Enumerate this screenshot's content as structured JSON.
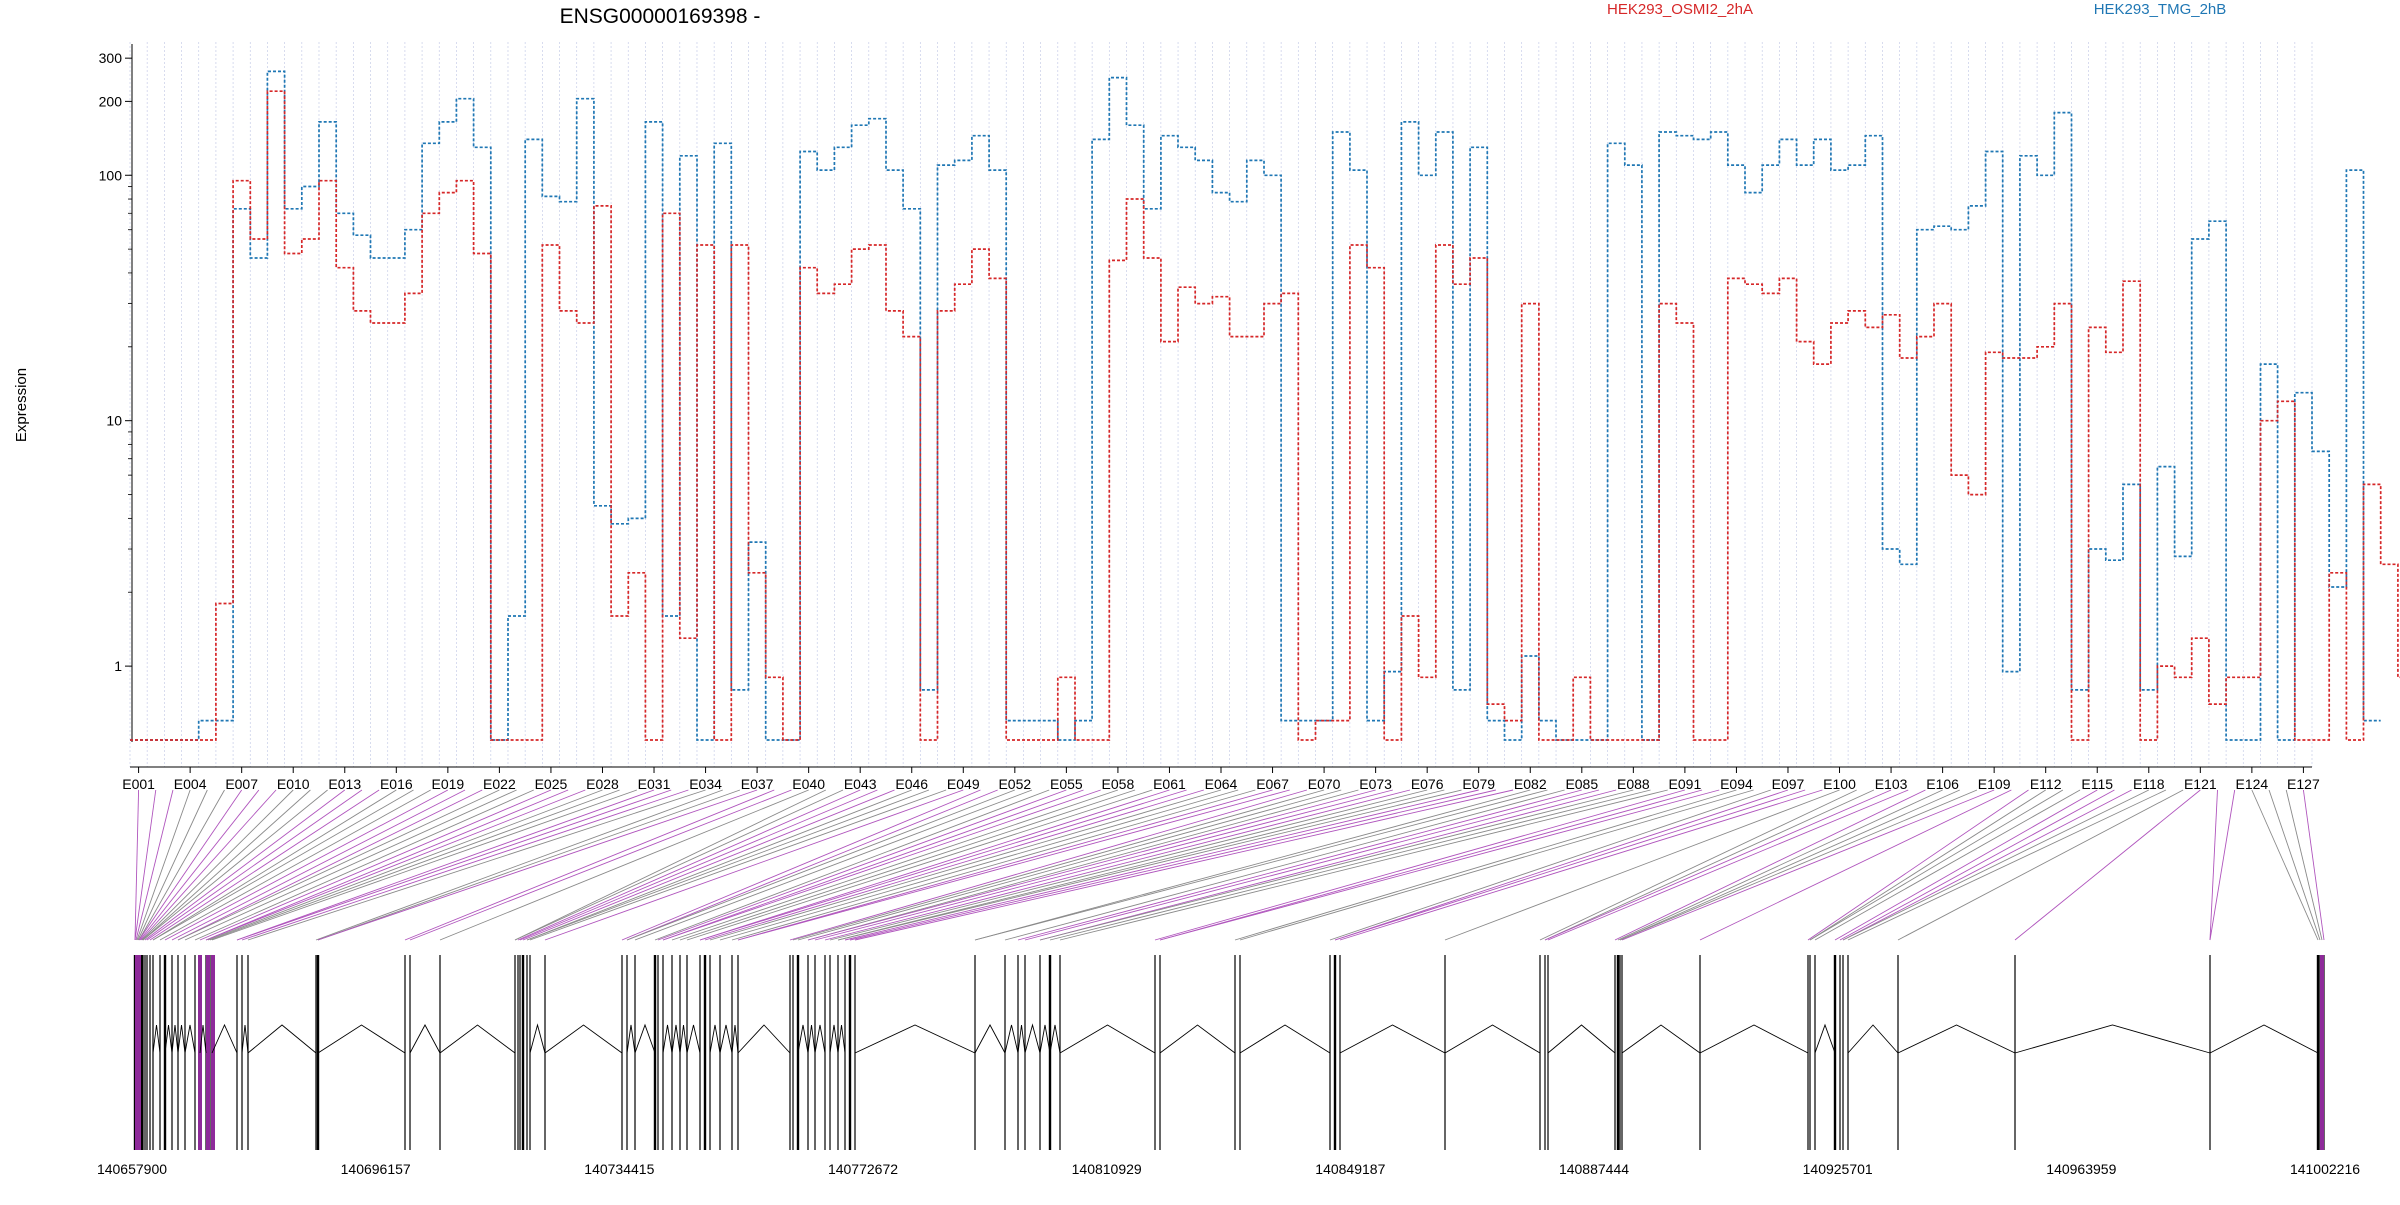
{
  "chart_data": {
    "type": "line",
    "title": "ENSG00000169398 -",
    "ylabel": "Expression",
    "yscale": "log",
    "ylim": [
      0.5,
      330
    ],
    "yticks": [
      1,
      10,
      100,
      200,
      300
    ],
    "ytick_labels": [
      "1",
      "10",
      "100",
      "200",
      "300"
    ],
    "legend_placement": "top",
    "series": [
      {
        "name": "HEK293_OSMI2_2hA",
        "color": "#d62728"
      },
      {
        "name": "HEK293_TMG_2hB",
        "color": "#1f77b4"
      }
    ],
    "exon_tick_labels": [
      "E001",
      "E004",
      "E007",
      "E010",
      "E013",
      "E016",
      "E019",
      "E022",
      "E025",
      "E028",
      "E031",
      "E034",
      "E037",
      "E040",
      "E043",
      "E046",
      "E049",
      "E052",
      "E055",
      "E058",
      "E061",
      "E064",
      "E067",
      "E070",
      "E073",
      "E076",
      "E079",
      "E082",
      "E085",
      "E088",
      "E091",
      "E094",
      "E097",
      "E100",
      "E103",
      "E106",
      "E109",
      "E112",
      "E115",
      "E118",
      "E121",
      "E124",
      "E127"
    ],
    "genome_tick_labels": [
      "140657900",
      "140696157",
      "140734415",
      "140772672",
      "140810929",
      "140849187",
      "140887444",
      "140925701",
      "140963959",
      "141002216"
    ],
    "genome_range": [
      140657900,
      141002216
    ]
  }
}
